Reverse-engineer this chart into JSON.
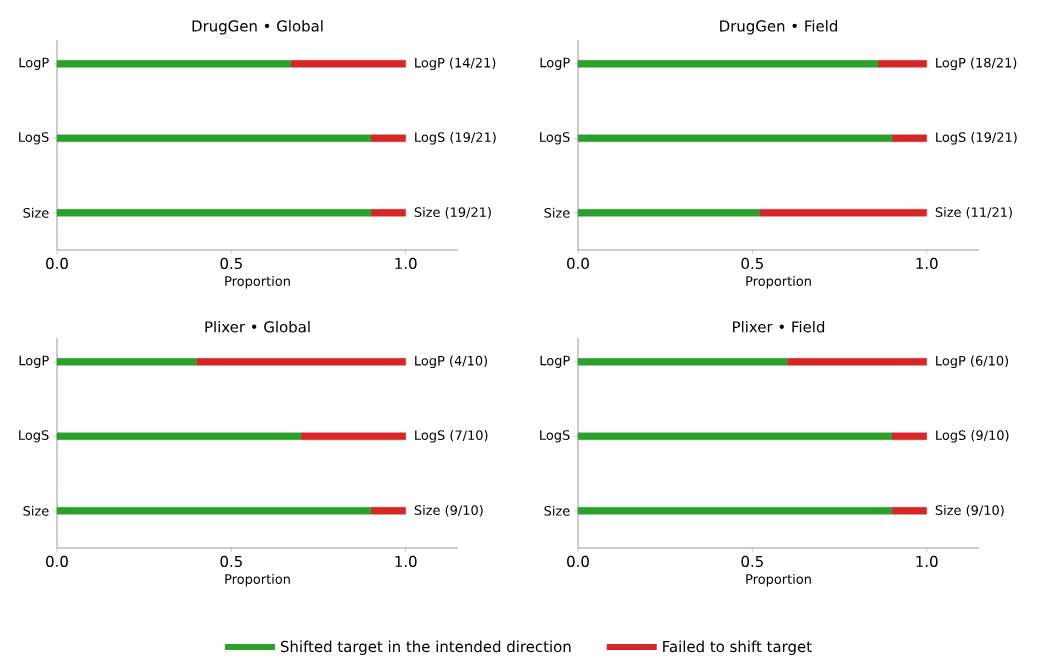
{
  "chart_data": [
    {
      "type": "bar",
      "orientation": "horizontal",
      "stacked": true,
      "title": "DrugGen • Global",
      "xlabel": "Proportion",
      "categories": [
        "LogP",
        "LogS",
        "Size"
      ],
      "xlim": [
        0,
        1.15
      ],
      "xticks": [
        {
          "value": 0,
          "label": "0.0"
        },
        {
          "value": 0.5,
          "label": "0.5"
        },
        {
          "value": 1,
          "label": "1.0"
        }
      ],
      "legend": "bottom",
      "series": [
        {
          "name": "Shifted target in the intended direction",
          "color": "#2ca02c",
          "values": [
            0.67,
            0.9,
            0.9
          ]
        },
        {
          "name": "Failed to shift target",
          "color": "#d62728",
          "values": [
            0.33,
            0.1,
            0.1
          ]
        }
      ],
      "annotations": [
        "LogP (14/21)",
        "LogS (19/21)",
        "Size (19/21)"
      ]
    },
    {
      "type": "bar",
      "orientation": "horizontal",
      "stacked": true,
      "title": "DrugGen • Field",
      "xlabel": "Proportion",
      "categories": [
        "LogP",
        "LogS",
        "Size"
      ],
      "xlim": [
        0,
        1.15
      ],
      "xticks": [
        {
          "value": 0,
          "label": "0.0"
        },
        {
          "value": 0.5,
          "label": "0.5"
        },
        {
          "value": 1,
          "label": "1.0"
        }
      ],
      "series": [
        {
          "color": "#2ca02c",
          "values": [
            0.86,
            0.9,
            0.52
          ]
        },
        {
          "color": "#d62728",
          "values": [
            0.14,
            0.1,
            0.48
          ]
        }
      ],
      "annotations": [
        "LogP (18/21)",
        "LogS (19/21)",
        "Size (11/21)"
      ]
    },
    {
      "type": "bar",
      "orientation": "horizontal",
      "stacked": true,
      "title": "Plixer  • Global",
      "xlabel": "Proportion",
      "categories": [
        "LogP",
        "LogS",
        "Size"
      ],
      "xlim": [
        0,
        1.15
      ],
      "xticks": [
        {
          "value": 0,
          "label": "0.0"
        },
        {
          "value": 0.5,
          "label": "0.5"
        },
        {
          "value": 1,
          "label": "1.0"
        }
      ],
      "series": [
        {
          "color": "#2ca02c",
          "values": [
            0.4,
            0.7,
            0.9
          ]
        },
        {
          "color": "#d62728",
          "values": [
            0.6,
            0.3,
            0.1
          ]
        }
      ],
      "annotations": [
        "LogP (4/10)",
        "LogS (7/10)",
        "Size (9/10)"
      ]
    },
    {
      "type": "bar",
      "orientation": "horizontal",
      "stacked": true,
      "title": "Plixer  • Field",
      "xlabel": "Proportion",
      "categories": [
        "LogP",
        "LogS",
        "Size"
      ],
      "xlim": [
        0,
        1.15
      ],
      "xticks": [
        {
          "value": 0,
          "label": "0.0"
        },
        {
          "value": 0.5,
          "label": "0.5"
        },
        {
          "value": 1,
          "label": "1.0"
        }
      ],
      "series": [
        {
          "color": "#2ca02c",
          "values": [
            0.6,
            0.9,
            0.9
          ]
        },
        {
          "color": "#d62728",
          "values": [
            0.4,
            0.1,
            0.1
          ]
        }
      ],
      "annotations": [
        "LogP (6/10)",
        "LogS (9/10)",
        "Size (9/10)"
      ]
    }
  ]
}
